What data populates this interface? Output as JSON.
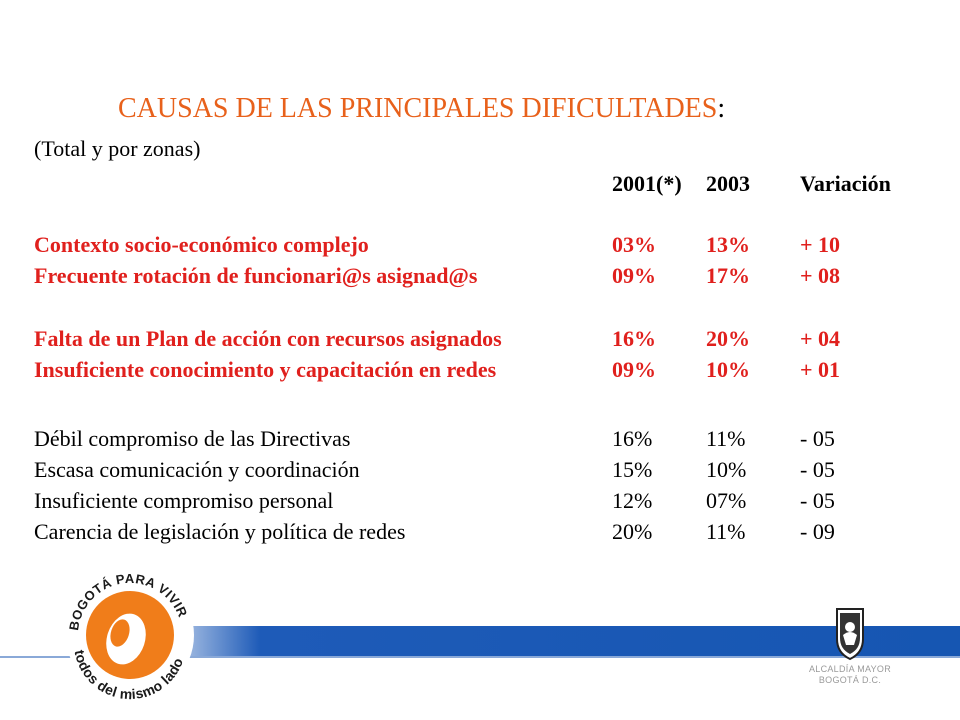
{
  "title": {
    "main": "CAUSAS DE LAS PRINCIPALES DIFICULTADES",
    "colon": ":"
  },
  "subtitle": "(Total y por zonas)",
  "table": {
    "headers": {
      "col_a": "2001(*)",
      "col_b": "2003",
      "col_v": "Variación"
    },
    "rows": [
      {
        "label": "Contexto socio-económico complejo",
        "a": "03%",
        "b": "13%",
        "v": "+ 10",
        "style": "red"
      },
      {
        "label": "Frecuente rotación de funcionari@s asignad@s",
        "a": "09%",
        "b": "17%",
        "v": "+ 08",
        "style": "red"
      },
      {
        "label": "Falta de un Plan de acción con recursos asignados",
        "a": "16%",
        "b": "20%",
        "v": "+ 04",
        "style": "red"
      },
      {
        "label": "Insuficiente conocimiento y capacitación en redes",
        "a": "09%",
        "b": "10%",
        "v": "+ 01",
        "style": "red"
      },
      {
        "label": "Débil compromiso de las Directivas",
        "a": "16%",
        "b": "11%",
        "v": "- 05",
        "style": "plain"
      },
      {
        "label": "Escasa comunicación y coordinación",
        "a": "15%",
        "b": "10%",
        "v": "- 05",
        "style": "plain"
      },
      {
        "label": "Insuficiente compromiso personal",
        "a": "12%",
        "b": "07%",
        "v": "- 05",
        "style": "plain"
      },
      {
        "label": "Carencia de legislación y política de redes",
        "a": "20%",
        "b": "11%",
        "v": "- 09",
        "style": "plain"
      }
    ]
  },
  "logos": {
    "left_text_top": "BOGOTÁ PARA VIVIR",
    "left_text_bottom": "todos del mismo lado",
    "right_text_line1": "ALCALDÍA MAYOR",
    "right_text_line2": "BOGOTÁ D.C."
  },
  "colors": {
    "title": "#e8611b",
    "red_rows": "#e0201d",
    "band": "#1656b2",
    "logo_orange": "#f07d1a"
  }
}
